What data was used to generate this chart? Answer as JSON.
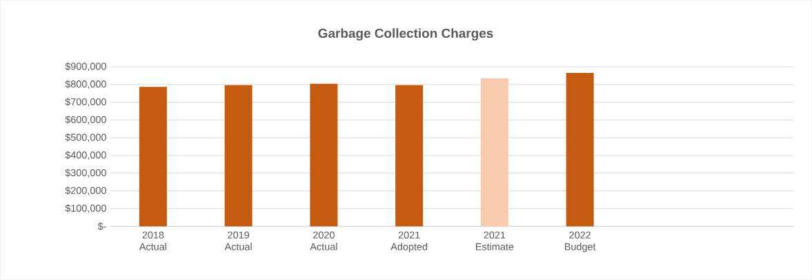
{
  "chart_data": {
    "type": "bar",
    "title": "Garbage Collection Charges",
    "categories": [
      "2018 Actual",
      "2019 Actual",
      "2020 Actual",
      "2021 Adopted",
      "2021 Estimate",
      "2022 Budget",
      null,
      null
    ],
    "values": [
      787000,
      796000,
      804000,
      796000,
      835000,
      865000,
      null,
      null
    ],
    "colors": [
      "#c55a11",
      "#c55a11",
      "#c55a11",
      "#c55a11",
      "#f8cbad",
      "#c55a11",
      "#c55a11",
      "#c55a11"
    ],
    "ylim": [
      0,
      900000
    ],
    "yticks": [
      {
        "value": 0,
        "label": "$-"
      },
      {
        "value": 100000,
        "label": "$100,000"
      },
      {
        "value": 200000,
        "label": "$200,000"
      },
      {
        "value": 300000,
        "label": "$300,000"
      },
      {
        "value": 400000,
        "label": "$400,000"
      },
      {
        "value": 500000,
        "label": "$500,000"
      },
      {
        "value": 600000,
        "label": "$600,000"
      },
      {
        "value": 700000,
        "label": "$700,000"
      },
      {
        "value": 800000,
        "label": "$800,000"
      },
      {
        "value": 900000,
        "label": "$900,000"
      }
    ],
    "grid": "y"
  }
}
